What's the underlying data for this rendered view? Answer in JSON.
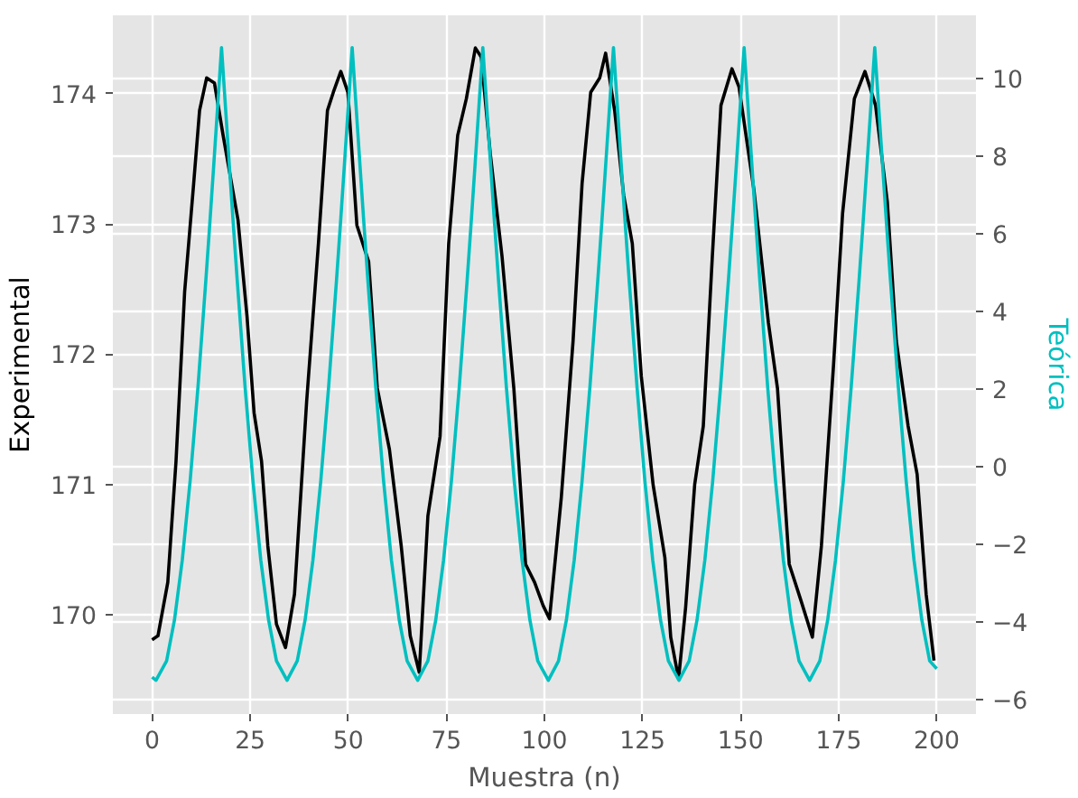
{
  "chart_data": {
    "type": "line",
    "xlabel": "Muestra (n)",
    "ylabel": "Experimental",
    "y2label": "Teórica",
    "xlim": [
      -10,
      210
    ],
    "xticks": [
      0,
      25,
      50,
      75,
      100,
      125,
      150,
      175,
      200
    ],
    "ylim": [
      169.24,
      174.6
    ],
    "yticks": [
      170,
      171,
      172,
      173,
      174
    ],
    "y2lim": [
      -6.37,
      11.63
    ],
    "y2ticks": [
      -6,
      -4,
      -2,
      0,
      2,
      4,
      6,
      8,
      10
    ],
    "grid": true,
    "series": [
      {
        "name": null,
        "color": "#000000",
        "x": [
          0,
          1.5,
          4,
          6.1,
          8.3,
          10.6,
          12.1,
          13.9,
          15.9,
          18.1,
          21.9,
          24.2,
          26,
          27.9,
          29.5,
          31.7,
          34,
          36.3,
          39.4,
          42.4,
          44.7,
          46.2,
          48.1,
          49.9,
          52.2,
          55.2,
          57.4,
          60.5,
          63.5,
          65.8,
          68.1,
          70.3,
          73.4,
          75.6,
          77.9,
          80.1,
          82.4,
          83.9,
          86.2,
          89.2,
          92.2,
          95.2,
          97.5,
          99.7,
          101.3,
          104.3,
          107.3,
          109.6,
          111.8,
          114.1,
          115.6,
          117.9,
          120.2,
          122.4,
          124.7,
          127.7,
          130.7,
          132.2,
          134.2,
          136,
          138.3,
          140.5,
          142.8,
          145,
          147.8,
          149.6,
          153.4,
          157.1,
          159.4,
          162.4,
          165.4,
          168.3,
          170.6,
          173.7,
          176,
          179,
          181.7,
          184.4,
          187.4,
          189.7,
          192.7,
          195,
          197.3,
          199.3
        ],
        "values": [
          169.81,
          169.84,
          170.25,
          171.18,
          172.48,
          173.31,
          173.87,
          174.12,
          174.08,
          173.68,
          173.03,
          172.29,
          171.55,
          171.18,
          170.53,
          169.93,
          169.75,
          170.16,
          171.64,
          172.85,
          173.87,
          174.01,
          174.17,
          174.01,
          172.99,
          172.71,
          171.74,
          171.27,
          170.53,
          169.84,
          169.56,
          170.76,
          171.37,
          172.85,
          173.68,
          173.96,
          174.35,
          174.28,
          173.54,
          172.75,
          171.74,
          170.39,
          170.25,
          170.07,
          169.97,
          170.9,
          172.1,
          173.31,
          174.01,
          174.12,
          174.31,
          173.87,
          173.22,
          172.85,
          171.83,
          171.0,
          170.44,
          169.83,
          169.51,
          170.06,
          171.0,
          171.45,
          172.75,
          173.91,
          174.19,
          174.05,
          173.26,
          172.24,
          171.74,
          170.39,
          170.11,
          169.83,
          170.53,
          171.92,
          173.08,
          173.96,
          174.17,
          173.91,
          173.17,
          172.1,
          171.45,
          171.08,
          170.16,
          169.65
        ]
      },
      {
        "name": null,
        "color": "#00bfbf",
        "axis": "y2",
        "x": [
          0,
          1,
          3.7,
          5.7,
          7.7,
          9.7,
          11.7,
          13.7,
          14.7,
          15.7,
          16.7,
          17.7,
          18.7,
          19.7,
          20.7,
          21.7,
          23.7,
          25.7,
          27.7,
          29.7,
          31.7,
          34.4,
          37,
          39,
          41,
          43,
          45,
          47,
          48,
          49,
          50,
          51,
          52,
          53,
          54,
          55,
          57,
          59,
          61,
          63,
          65,
          67.7,
          70.3,
          72.3,
          74.3,
          76.3,
          78.3,
          80.3,
          81.3,
          82.3,
          83.3,
          84.3,
          85.3,
          86.3,
          87.3,
          88.3,
          90.3,
          92.3,
          94.3,
          96.3,
          98.3,
          101,
          103.6,
          105.6,
          107.6,
          109.6,
          111.6,
          113.6,
          114.6,
          115.6,
          116.6,
          117.6,
          118.6,
          119.6,
          120.6,
          121.6,
          123.6,
          125.6,
          127.6,
          129.6,
          131.6,
          134.3,
          136.9,
          138.9,
          140.9,
          142.9,
          144.9,
          146.9,
          147.9,
          148.9,
          149.9,
          150.9,
          151.9,
          152.9,
          153.9,
          154.9,
          156.9,
          158.9,
          160.9,
          162.9,
          164.9,
          167.6,
          170.2,
          172.2,
          174.2,
          176.2,
          178.2,
          180.2,
          181.2,
          182.2,
          183.2,
          184.2,
          185.2,
          186.2,
          187.2,
          188.2,
          190.2,
          192.2,
          194.2,
          196.2,
          198.2,
          200
        ],
        "values": [
          -5.42,
          -5.5,
          -5.0,
          -3.95,
          -2.4,
          -0.36,
          2.06,
          4.8,
          6.25,
          7.75,
          9.27,
          10.8,
          9.27,
          7.75,
          6.25,
          4.8,
          2.06,
          -0.36,
          -2.4,
          -3.95,
          -5.0,
          -5.5,
          -5.0,
          -3.95,
          -2.4,
          -0.36,
          2.06,
          4.8,
          6.25,
          7.75,
          9.27,
          10.8,
          9.27,
          7.75,
          6.25,
          4.8,
          2.06,
          -0.36,
          -2.4,
          -3.95,
          -5.0,
          -5.5,
          -5.0,
          -3.95,
          -2.4,
          -0.36,
          2.06,
          4.8,
          6.25,
          7.75,
          9.27,
          10.8,
          9.27,
          7.75,
          6.25,
          4.8,
          2.06,
          -0.36,
          -2.4,
          -3.95,
          -5.0,
          -5.5,
          -5.0,
          -3.95,
          -2.4,
          -0.36,
          2.06,
          4.8,
          6.25,
          7.75,
          9.27,
          10.8,
          9.27,
          7.75,
          6.25,
          4.8,
          2.06,
          -0.36,
          -2.4,
          -3.95,
          -5.0,
          -5.5,
          -5.0,
          -3.95,
          -2.4,
          -0.36,
          2.06,
          4.8,
          6.25,
          7.75,
          9.27,
          10.8,
          9.27,
          7.75,
          6.25,
          4.8,
          2.06,
          -0.36,
          -2.4,
          -3.95,
          -5.0,
          -5.5,
          -5.0,
          -3.95,
          -2.4,
          -0.36,
          2.06,
          4.8,
          6.25,
          7.75,
          9.27,
          10.8,
          9.27,
          7.75,
          6.25,
          4.8,
          2.06,
          -0.36,
          -2.4,
          -3.95,
          -5.0,
          -5.2
        ]
      }
    ]
  }
}
